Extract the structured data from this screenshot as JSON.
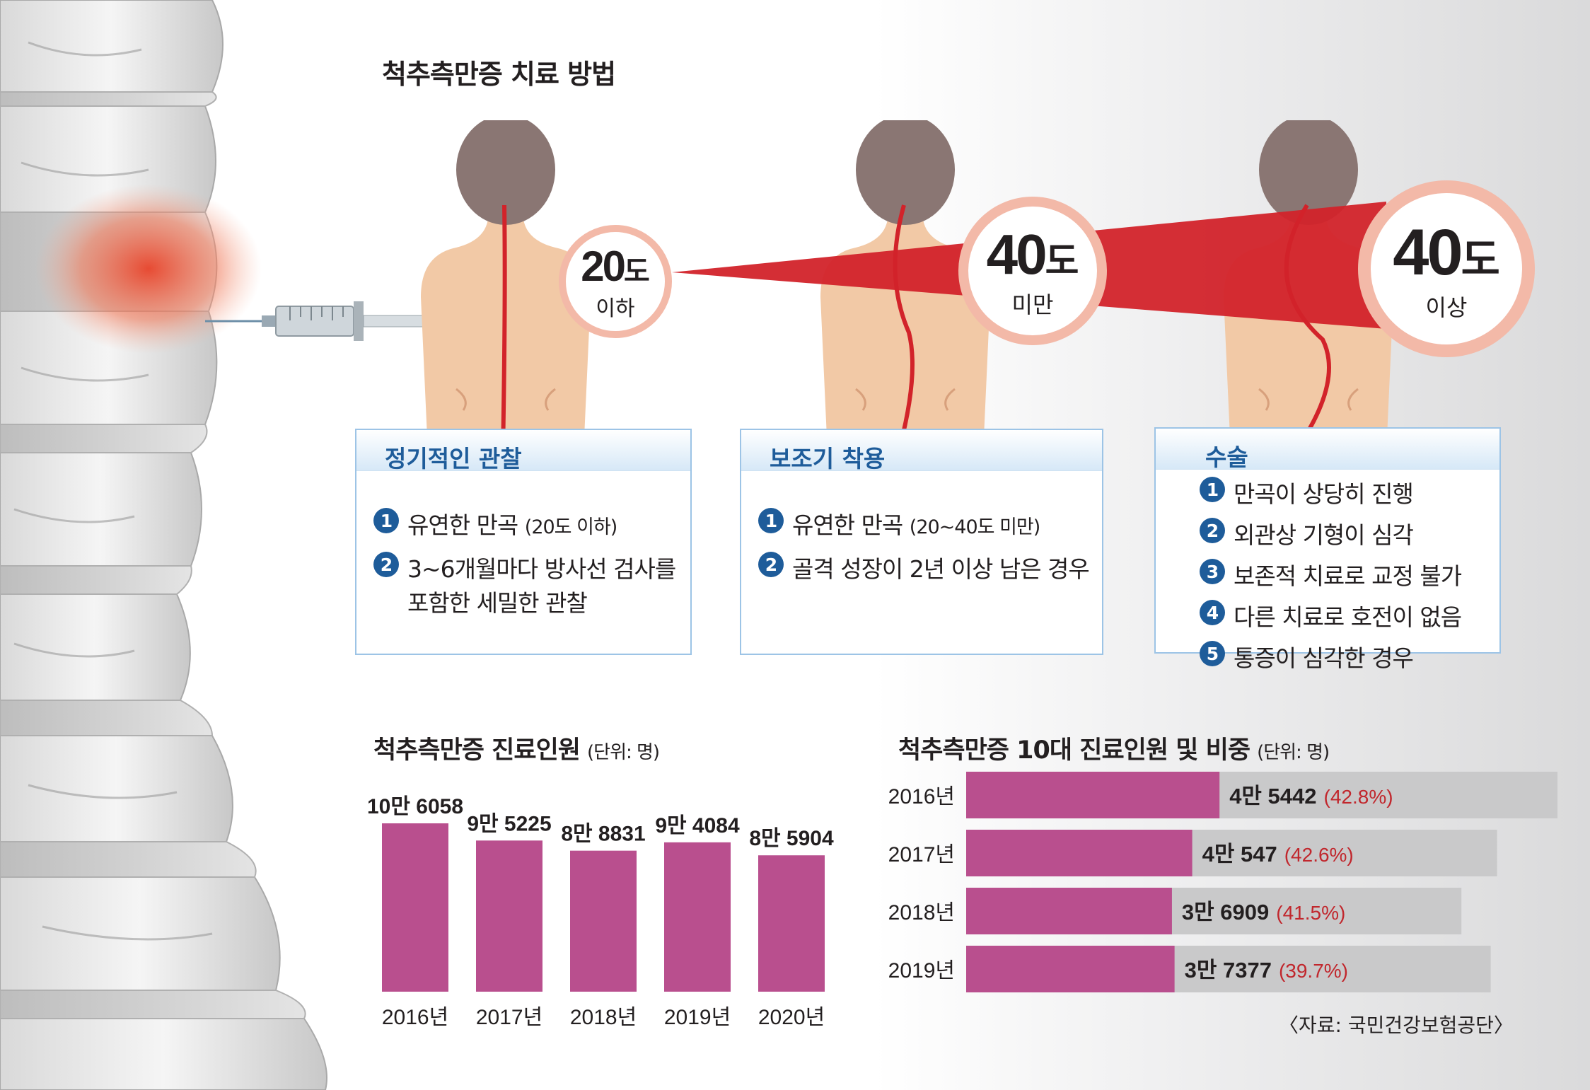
{
  "title": "척추측만증 치료 방법",
  "colors": {
    "accent_red": "#d2232a",
    "box_blue": "#1e5c9a",
    "bar_magenta": "#b94f8e",
    "bar_gray": "#c9c9ca",
    "percent_red": "#c1272d",
    "skin": "#f2c9a6"
  },
  "degrees": [
    {
      "value": "20",
      "unit": "도",
      "sub": "이하"
    },
    {
      "value": "40",
      "unit": "도",
      "sub": "미만"
    },
    {
      "value": "40",
      "unit": "도",
      "sub": "이상"
    }
  ],
  "boxes": [
    {
      "title": "정기적인 관찰",
      "items": [
        {
          "n": "1",
          "text": "유연한 만곡",
          "small": "(20도 이하)"
        },
        {
          "n": "2",
          "text": "3~6개월마다 방사선 검사를",
          "text2": "포함한 세밀한 관찰"
        }
      ]
    },
    {
      "title": "보조기 착용",
      "items": [
        {
          "n": "1",
          "text": "유연한 만곡",
          "small": "(20~40도 미만)"
        },
        {
          "n": "2",
          "text": "골격 성장이 2년 이상 남은 경우"
        }
      ]
    },
    {
      "title": "수술",
      "items": [
        {
          "n": "1",
          "text": "만곡이 상당히 진행"
        },
        {
          "n": "2",
          "text": "외관상 기형이 심각"
        },
        {
          "n": "3",
          "text": "보존적 치료로 교정 불가"
        },
        {
          "n": "4",
          "text": "다른 치료로 호전이 없음"
        },
        {
          "n": "5",
          "text": "통증이 심각한 경우"
        }
      ]
    }
  ],
  "chart_data": [
    {
      "type": "bar",
      "title": "척추측만증 진료인원",
      "unit": "(단위: 명)",
      "categories": [
        "2016년",
        "2017년",
        "2018년",
        "2019년",
        "2020년"
      ],
      "values": [
        106058,
        95225,
        88831,
        94084,
        85904
      ],
      "labels": [
        "10만 6058",
        "9만 5225",
        "8만 8831",
        "9만 4084",
        "8만 5904"
      ],
      "ylim": [
        0,
        110000
      ]
    },
    {
      "type": "bar",
      "orientation": "horizontal",
      "title": "척추측만증 10대 진료인원 및 비중",
      "unit": "(단위: 명)",
      "categories": [
        "2016년",
        "2017년",
        "2018년",
        "2019년"
      ],
      "series": [
        {
          "values": [
            45442,
            40547,
            36909,
            37377
          ]
        },
        {
          "values": [
            106058,
            95225,
            88831,
            94084
          ]
        }
      ],
      "labels": [
        "4만 5442",
        "4만 547",
        "3만 6909",
        "3만 7377"
      ],
      "percents": [
        "(42.8%)",
        "(42.6%)",
        "(41.5%)",
        "(39.7%)"
      ]
    }
  ],
  "source": "〈자료: 국민건강보험공단〉"
}
